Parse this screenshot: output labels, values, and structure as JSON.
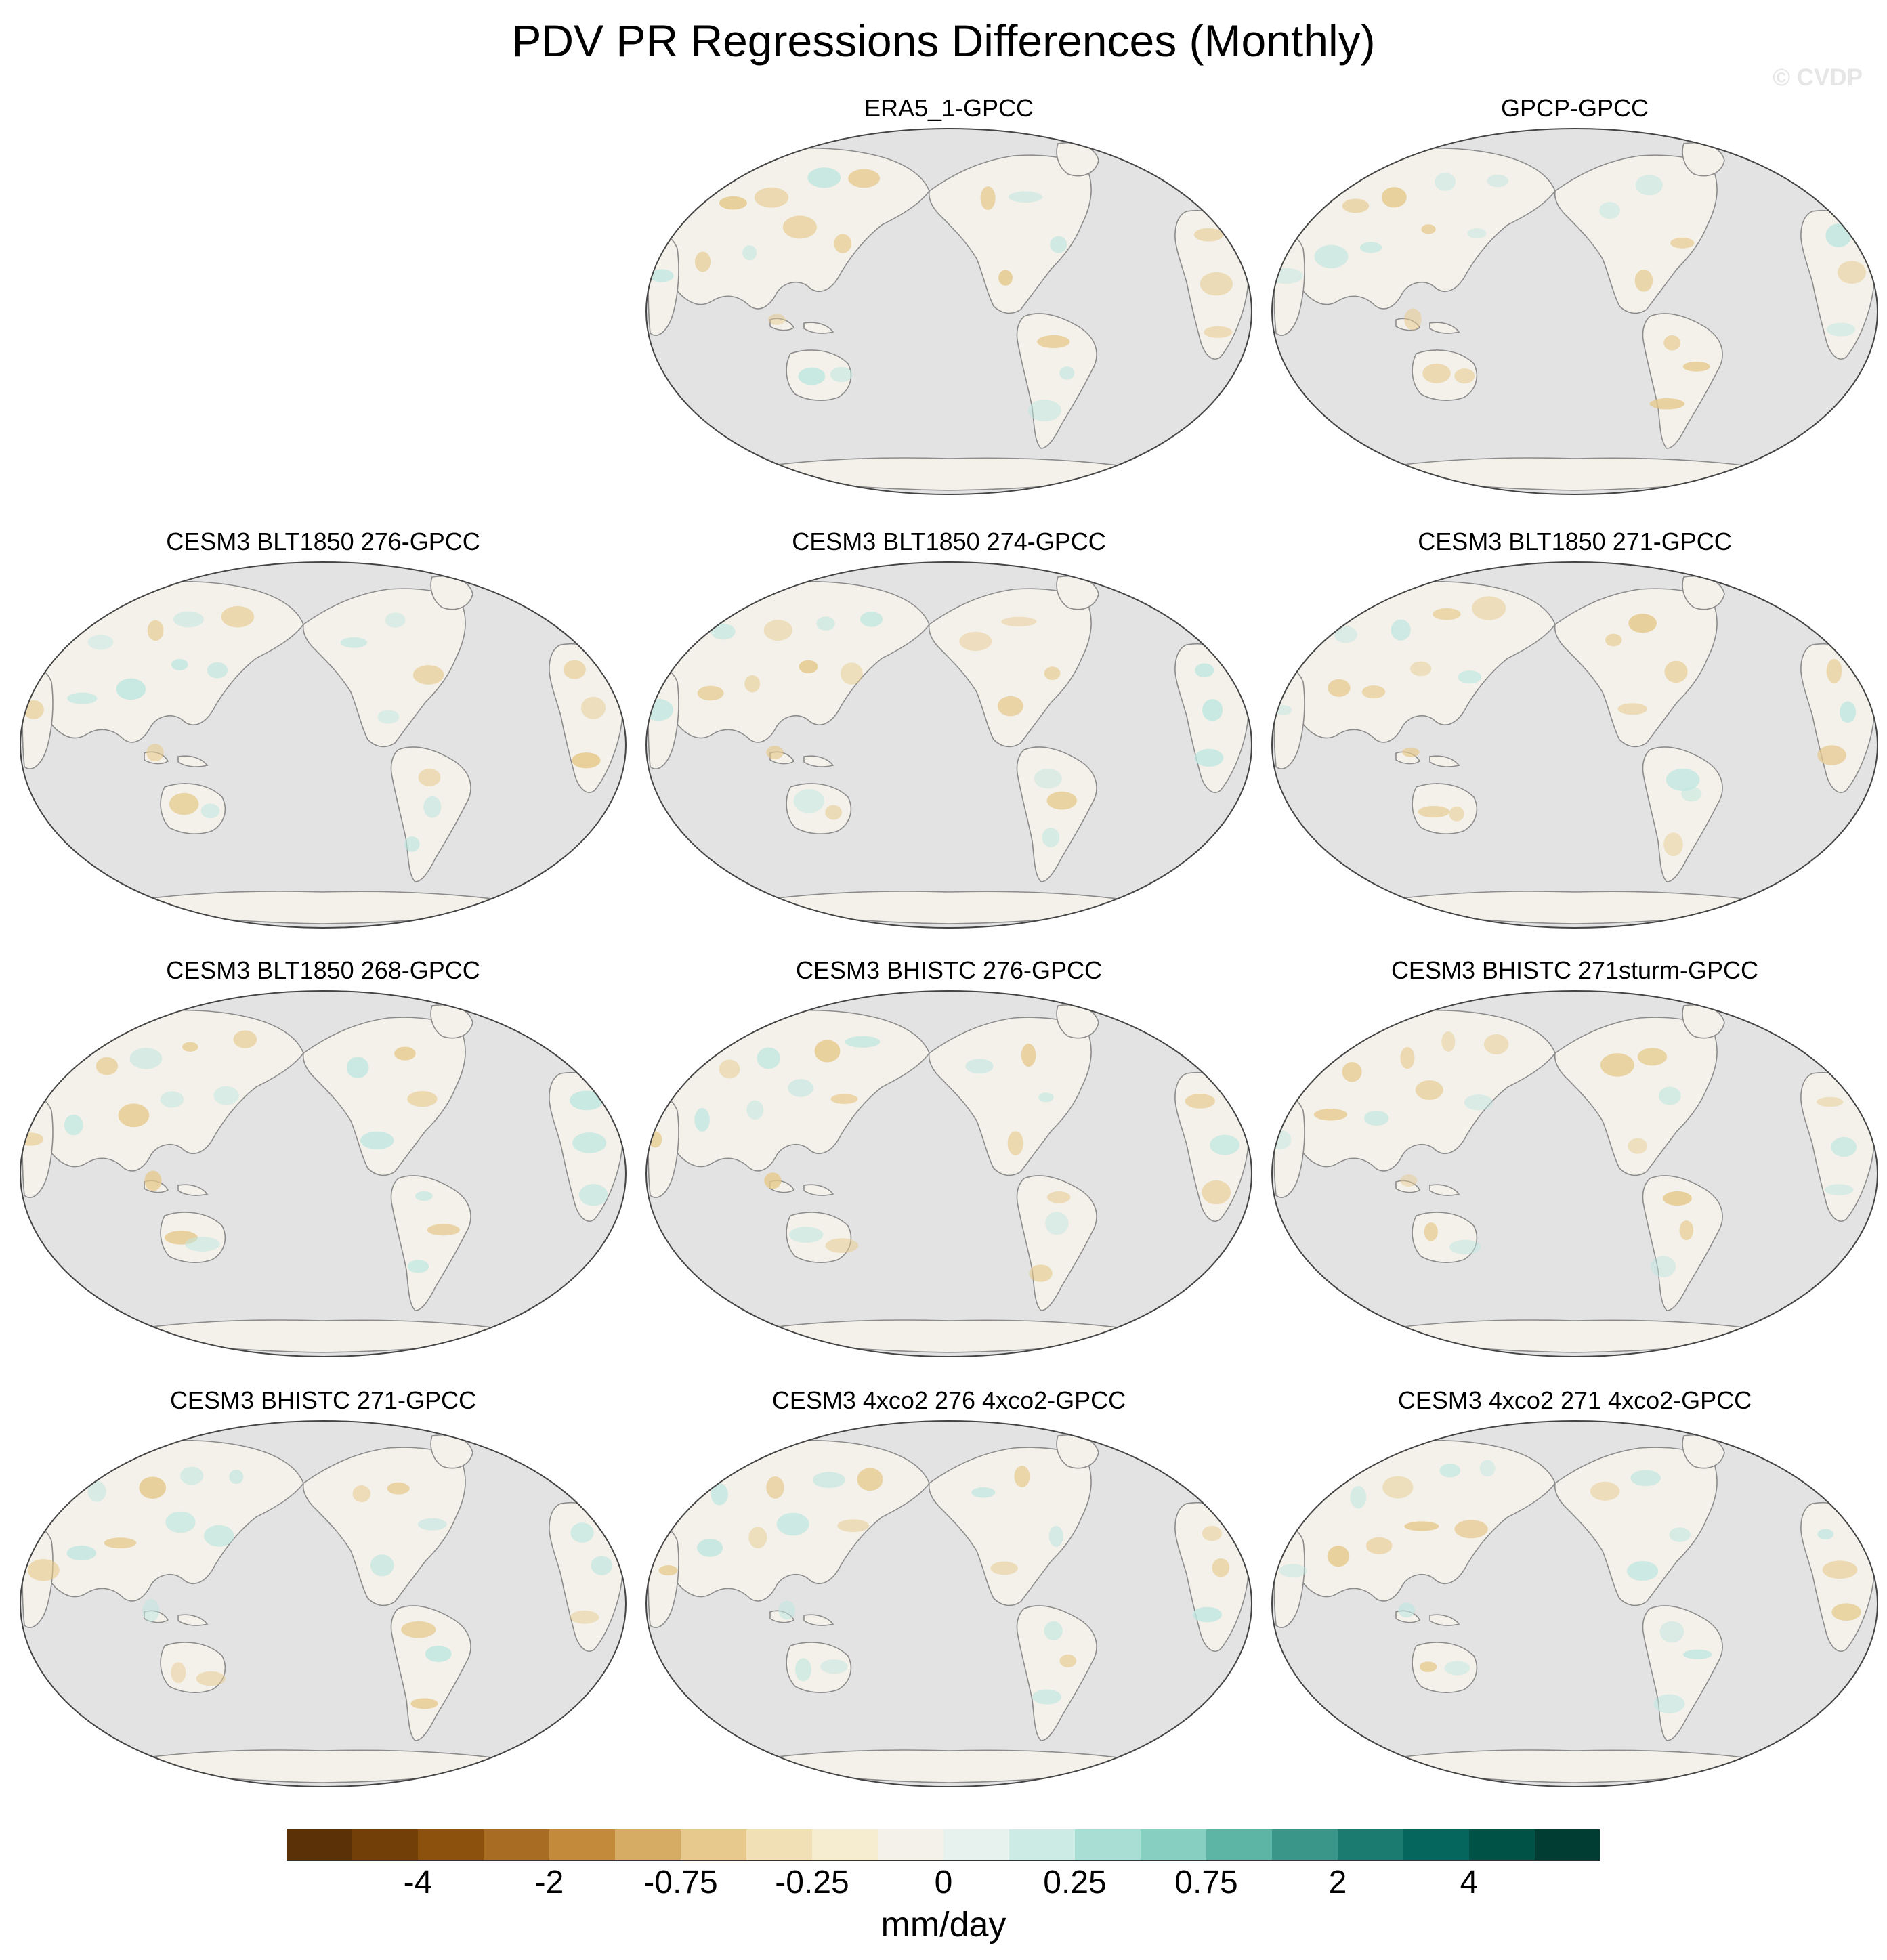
{
  "title": "PDV PR Regressions Differences (Monthly)",
  "watermark": "© CVDP",
  "panels": [
    {
      "title": "ERA5_1-GPCC",
      "row": 0,
      "col": 1
    },
    {
      "title": "GPCP-GPCC",
      "row": 0,
      "col": 2
    },
    {
      "title": "CESM3 BLT1850 276-GPCC",
      "row": 1,
      "col": 0
    },
    {
      "title": "CESM3 BLT1850 274-GPCC",
      "row": 1,
      "col": 1
    },
    {
      "title": "CESM3 BLT1850 271-GPCC",
      "row": 1,
      "col": 2
    },
    {
      "title": "CESM3 BLT1850 268-GPCC",
      "row": 2,
      "col": 0
    },
    {
      "title": "CESM3 BHISTC 276-GPCC",
      "row": 2,
      "col": 1
    },
    {
      "title": "CESM3 BHISTC 271sturm-GPCC",
      "row": 2,
      "col": 2
    },
    {
      "title": "CESM3 BHISTC 271-GPCC",
      "row": 3,
      "col": 0
    },
    {
      "title": "CESM3 4xco2 276 4xco2-GPCC",
      "row": 3,
      "col": 1
    },
    {
      "title": "CESM3 4xco2 271 4xco2-GPCC",
      "row": 3,
      "col": 2
    }
  ],
  "colors": {
    "ocean": "#e3e3e3",
    "land": "#f4f1ea",
    "coast": "#8c8c8c",
    "dry": "#e6c98c",
    "wet": "#bfe6e0"
  },
  "colorbar": {
    "colors": [
      "#5b3207",
      "#733f09",
      "#8c520d",
      "#a86d22",
      "#c28a3a",
      "#d6ab63",
      "#e7c98e",
      "#f1dfb6",
      "#f6eccf",
      "#f4f1ea",
      "#e7f2ef",
      "#cbebe4",
      "#a8ded4",
      "#87d0c1",
      "#5db5a6",
      "#3a9688",
      "#1c7b70",
      "#04665c",
      "#015246",
      "#013d33"
    ],
    "ticks": [
      {
        "label": "-4",
        "index": 2
      },
      {
        "label": "-2",
        "index": 4
      },
      {
        "label": "-0.75",
        "index": 6
      },
      {
        "label": "-0.25",
        "index": 8
      },
      {
        "label": "0",
        "index": 10
      },
      {
        "label": "0.25",
        "index": 12
      },
      {
        "label": "0.75",
        "index": 14
      },
      {
        "label": "2",
        "index": 16
      },
      {
        "label": "4",
        "index": 18
      }
    ],
    "units": "mm/day"
  }
}
